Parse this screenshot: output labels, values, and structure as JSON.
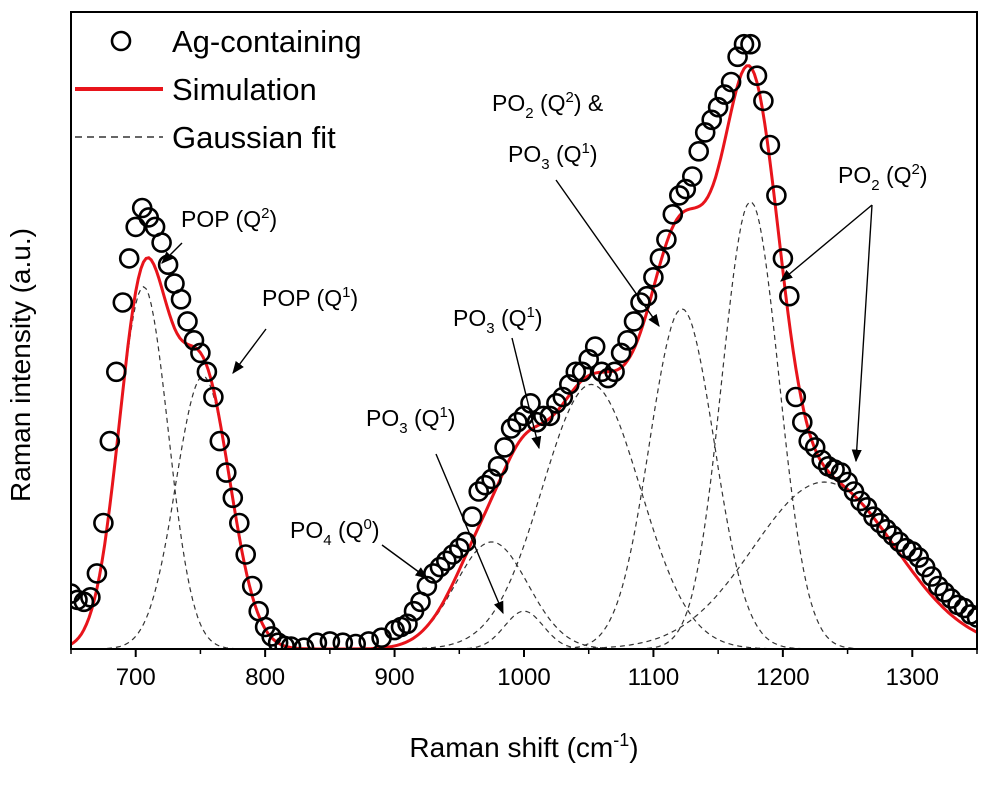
{
  "chart_data": {
    "type": "scatter",
    "xlabel": "Raman shift (cm",
    "xlabel_sup": "-1",
    "xlabel_end": ")",
    "ylabel": "Raman intensity (a.u.)",
    "xlim": [
      650,
      1350
    ],
    "ylim": [
      0,
      1.0
    ],
    "xticks": [
      700,
      800,
      900,
      1000,
      1100,
      1200,
      1300
    ],
    "legend": {
      "position": "top-left",
      "entries": [
        {
          "label": "Ag-containing",
          "kind": "circle"
        },
        {
          "label": "Simulation",
          "kind": "line",
          "color": "#e8141b"
        },
        {
          "label": "Gaussian fit",
          "kind": "dashed",
          "color": "#333333"
        }
      ]
    },
    "gaussians": [
      {
        "center": 706,
        "amplitude": 0.575,
        "sigma": 19
      },
      {
        "center": 752,
        "amplitude": 0.433,
        "sigma": 21
      },
      {
        "center": 975,
        "amplitude": 0.17,
        "sigma": 28
      },
      {
        "center": 1000,
        "amplitude": 0.06,
        "sigma": 15
      },
      {
        "center": 1052,
        "amplitude": 0.42,
        "sigma": 38
      },
      {
        "center": 1122,
        "amplitude": 0.54,
        "sigma": 25
      },
      {
        "center": 1175,
        "amplitude": 0.71,
        "sigma": 22
      },
      {
        "center": 1232,
        "amplitude": 0.265,
        "sigma": 55
      }
    ],
    "series": [
      {
        "name": "Ag-containing",
        "x": [
          650,
          655,
          660,
          665,
          670,
          675,
          680,
          685,
          690,
          695,
          700,
          705,
          710,
          715,
          720,
          725,
          730,
          735,
          740,
          745,
          750,
          755,
          760,
          765,
          770,
          775,
          780,
          785,
          790,
          795,
          800,
          805,
          810,
          815,
          820,
          830,
          840,
          850,
          860,
          870,
          880,
          890,
          900,
          905,
          910,
          915,
          920,
          925,
          930,
          935,
          940,
          945,
          950,
          955,
          960,
          965,
          970,
          975,
          980,
          985,
          990,
          995,
          1000,
          1005,
          1010,
          1015,
          1020,
          1025,
          1030,
          1035,
          1040,
          1045,
          1050,
          1055,
          1060,
          1065,
          1070,
          1075,
          1080,
          1085,
          1090,
          1095,
          1100,
          1105,
          1110,
          1115,
          1120,
          1125,
          1130,
          1135,
          1140,
          1145,
          1150,
          1155,
          1160,
          1165,
          1170,
          1175,
          1180,
          1185,
          1190,
          1195,
          1200,
          1205,
          1210,
          1215,
          1220,
          1225,
          1230,
          1235,
          1240,
          1245,
          1250,
          1255,
          1260,
          1265,
          1270,
          1275,
          1280,
          1285,
          1290,
          1295,
          1300,
          1305,
          1310,
          1315,
          1320,
          1325,
          1330,
          1335,
          1340,
          1345,
          1350
        ],
        "y": [
          0.088,
          0.078,
          0.075,
          0.082,
          0.12,
          0.2,
          0.33,
          0.44,
          0.55,
          0.62,
          0.67,
          0.7,
          0.685,
          0.67,
          0.645,
          0.61,
          0.58,
          0.555,
          0.52,
          0.49,
          0.47,
          0.44,
          0.4,
          0.33,
          0.28,
          0.24,
          0.2,
          0.15,
          0.1,
          0.06,
          0.035,
          0.02,
          0.01,
          0.005,
          0.004,
          0.002,
          0.01,
          0.012,
          0.01,
          0.008,
          0.012,
          0.018,
          0.03,
          0.035,
          0.04,
          0.06,
          0.075,
          0.1,
          0.12,
          0.13,
          0.14,
          0.15,
          0.16,
          0.17,
          0.21,
          0.25,
          0.26,
          0.27,
          0.29,
          0.32,
          0.35,
          0.36,
          0.37,
          0.39,
          0.36,
          0.37,
          0.37,
          0.39,
          0.4,
          0.42,
          0.44,
          0.44,
          0.46,
          0.48,
          0.44,
          0.43,
          0.44,
          0.47,
          0.49,
          0.52,
          0.55,
          0.56,
          0.59,
          0.62,
          0.65,
          0.69,
          0.72,
          0.73,
          0.75,
          0.79,
          0.82,
          0.84,
          0.86,
          0.88,
          0.9,
          0.94,
          0.96,
          0.96,
          0.91,
          0.87,
          0.8,
          0.72,
          0.62,
          0.56,
          0.4,
          0.36,
          0.33,
          0.32,
          0.3,
          0.29,
          0.285,
          0.28,
          0.265,
          0.25,
          0.235,
          0.225,
          0.21,
          0.2,
          0.19,
          0.18,
          0.17,
          0.16,
          0.155,
          0.145,
          0.13,
          0.115,
          0.1,
          0.09,
          0.08,
          0.07,
          0.065,
          0.055,
          0.05
        ]
      }
    ],
    "annotations": [
      {
        "parts": [
          [
            "POP (Q",
            "n"
          ],
          [
            "2",
            "sup"
          ],
          [
            ")",
            "n"
          ]
        ]
      },
      {
        "parts": [
          [
            "POP (Q",
            "n"
          ],
          [
            "1",
            "sup"
          ],
          [
            ")",
            "n"
          ]
        ]
      },
      {
        "parts": [
          [
            "PO",
            "n"
          ],
          [
            "4",
            "sub"
          ],
          [
            " (Q",
            "n"
          ],
          [
            "0",
            "sup"
          ],
          [
            ")",
            "n"
          ]
        ]
      },
      {
        "parts": [
          [
            "PO",
            "n"
          ],
          [
            "3",
            "sub"
          ],
          [
            " (Q",
            "n"
          ],
          [
            "1",
            "sup"
          ],
          [
            ")",
            "n"
          ]
        ]
      },
      {
        "parts": [
          [
            "PO",
            "n"
          ],
          [
            "3",
            "sub"
          ],
          [
            " (Q",
            "n"
          ],
          [
            "1",
            "sup"
          ],
          [
            ")",
            "n"
          ]
        ]
      },
      {
        "parts": [
          [
            "PO",
            "n"
          ],
          [
            "2",
            "sub"
          ],
          [
            " (Q",
            "n"
          ],
          [
            "2",
            "sup"
          ],
          [
            ") &",
            "n"
          ]
        ]
      },
      {
        "parts": [
          [
            "PO",
            "n"
          ],
          [
            "3",
            "sub"
          ],
          [
            " (Q",
            "n"
          ],
          [
            "1",
            "sup"
          ],
          [
            ")",
            "n"
          ]
        ]
      },
      {
        "parts": [
          [
            "PO",
            "n"
          ],
          [
            "2",
            "sub"
          ],
          [
            " (Q",
            "n"
          ],
          [
            "2",
            "sup"
          ],
          [
            ")",
            "n"
          ]
        ]
      }
    ]
  }
}
